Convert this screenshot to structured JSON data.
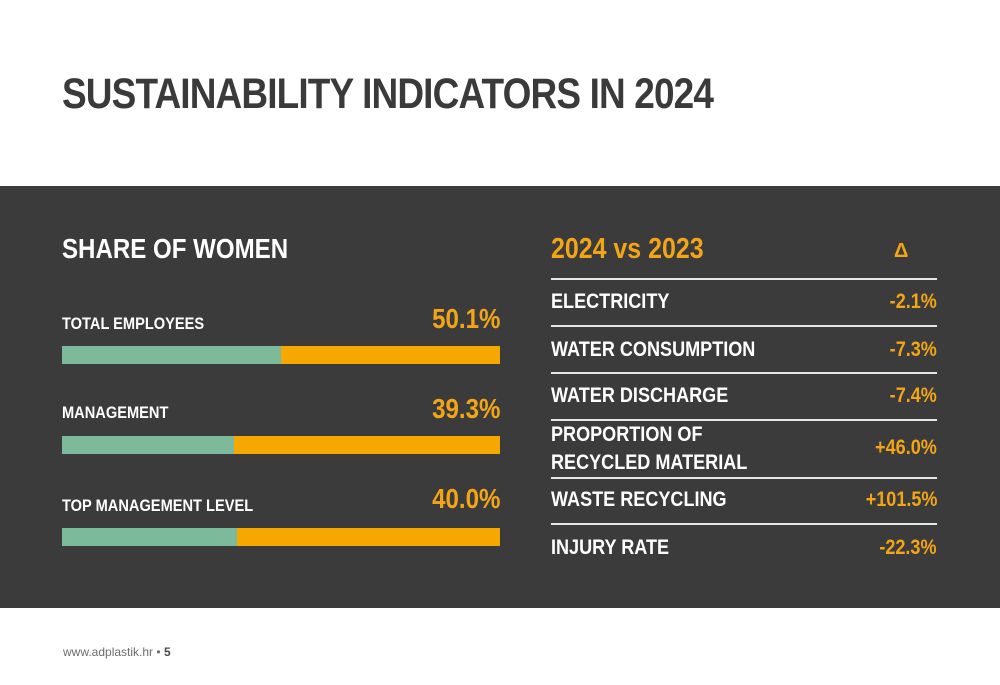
{
  "title": "SUSTAINABILITY INDICATORS IN 2024",
  "women": {
    "heading": "SHARE OF WOMEN",
    "rows": [
      {
        "label": "TOTAL EMPLOYEES",
        "value": "50.1%",
        "fraction": 0.501
      },
      {
        "label": "MANAGEMENT",
        "value": "39.3%",
        "fraction": 0.393
      },
      {
        "label": "TOP MANAGEMENT LEVEL",
        "value": "40.0%",
        "fraction": 0.4
      }
    ]
  },
  "comparison": {
    "heading": "2024 vs 2023",
    "delta_symbol": "Δ",
    "rows": [
      {
        "label": "ELECTRICITY",
        "value": "-2.1%"
      },
      {
        "label": "WATER CONSUMPTION",
        "value": "-7.3%"
      },
      {
        "label": "WATER DISCHARGE",
        "value": "-7.4%"
      },
      {
        "label": "PROPORTION OF RECYCLED MATERIAL",
        "value": "+46.0%"
      },
      {
        "label": "WASTE RECYCLING",
        "value": "+101.5%"
      },
      {
        "label": "INJURY RATE",
        "value": "-22.3%"
      }
    ]
  },
  "footer": {
    "url": "www.adplastik.hr",
    "separator": "•",
    "page": "5"
  },
  "colors": {
    "panel": "#3b3b3b",
    "accent": "#f2a516",
    "bar_fill": "#7dba9b",
    "bar_remainder": "#f6a800"
  }
}
